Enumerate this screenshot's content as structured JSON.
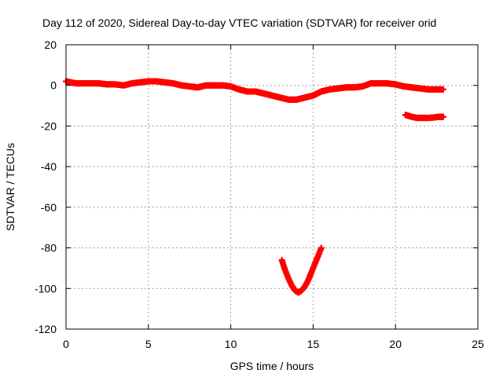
{
  "chart_data": {
    "type": "scatter",
    "title": "Day 112 of 2020, Sidereal Day-to-day VTEC variation (SDTVAR) for receiver orid",
    "xlabel": "GPS time / hours",
    "ylabel": "SDTVAR / TECUs",
    "xlim": [
      0,
      25
    ],
    "ylim": [
      -120,
      20
    ],
    "xticks": [
      0,
      5,
      10,
      15,
      20,
      25
    ],
    "yticks": [
      20,
      0,
      -20,
      -40,
      -60,
      -80,
      -100,
      -120
    ],
    "grid": true,
    "marker": "plus",
    "color": "#ff0000",
    "series": [
      {
        "x": [
          0.0,
          0.3,
          0.6,
          1.0,
          1.5,
          2.0,
          2.5,
          3.0,
          3.5,
          4.0,
          4.5,
          5.0,
          5.5,
          6.0,
          6.5,
          7.0,
          7.5,
          8.0,
          8.5,
          9.0,
          9.5,
          10.0,
          10.5,
          11.0,
          11.5,
          12.0,
          12.5,
          13.0,
          13.5,
          14.0,
          14.5,
          15.0,
          15.5,
          16.0,
          16.5,
          17.0,
          17.5,
          18.0,
          18.5,
          19.0,
          19.5,
          20.0,
          20.5,
          21.0,
          21.5,
          22.0,
          22.5,
          22.9
        ],
        "y": [
          2,
          1.5,
          1,
          1,
          1,
          1,
          0.5,
          0.5,
          0,
          1,
          1.5,
          2,
          2,
          1.5,
          1,
          0,
          -0.5,
          -1,
          0,
          0,
          0,
          -0.5,
          -2,
          -3,
          -3,
          -4,
          -5,
          -6,
          -7,
          -7,
          -6,
          -5,
          -3,
          -2,
          -1.5,
          -1,
          -1,
          -0.5,
          1,
          1,
          1,
          0.5,
          -0.5,
          -1,
          -1.5,
          -2,
          -2,
          -2
        ]
      },
      {
        "x": [
          20.6,
          20.8,
          21.0,
          21.3,
          21.6,
          22.0,
          22.3,
          22.6,
          22.9
        ],
        "y": [
          -14.5,
          -15,
          -15.5,
          -16,
          -16,
          -16,
          -15.8,
          -15.5,
          -15.5
        ]
      },
      {
        "x": [
          13.1,
          13.3,
          13.5,
          13.7,
          13.9,
          14.1,
          14.3,
          14.5,
          14.7,
          14.9,
          15.1,
          15.3,
          15.5
        ],
        "y": [
          -86,
          -91,
          -95,
          -98.5,
          -101,
          -102,
          -101,
          -99,
          -96,
          -92,
          -88,
          -84,
          -80
        ]
      }
    ]
  }
}
